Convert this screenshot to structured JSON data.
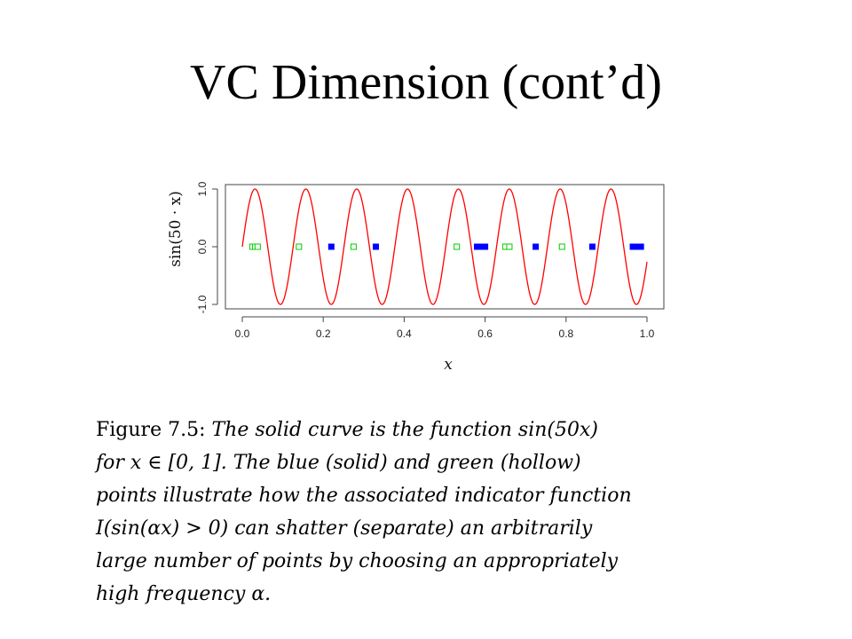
{
  "slide": {
    "title": "VC Dimension (cont’d)"
  },
  "chart_data": {
    "type": "line",
    "xlabel": "x",
    "ylabel": "sin(50 · x)",
    "xlim": [
      0,
      1
    ],
    "ylim": [
      -1,
      1
    ],
    "x_ticks": [
      "0.0",
      "0.2",
      "0.4",
      "0.6",
      "0.8",
      "1.0"
    ],
    "y_ticks": [
      "-1.0",
      "0.0",
      "1.0"
    ],
    "series": [
      {
        "kind": "line",
        "function": "sin(50x)",
        "color": "#ff0000"
      },
      {
        "kind": "points",
        "style": "hollow-square",
        "color": "#00cc00",
        "x": [
          0.025,
          0.032,
          0.038,
          0.14,
          0.275,
          0.53,
          0.65,
          0.66,
          0.79
        ]
      },
      {
        "kind": "points",
        "style": "solid-square",
        "color": "#0000ff",
        "x": [
          0.22,
          0.33,
          0.58,
          0.59,
          0.6,
          0.725,
          0.865,
          0.965,
          0.975,
          0.985
        ]
      }
    ]
  },
  "caption": {
    "lines": [
      {
        "normal": "Figure 7.5:",
        "italic": "The solid curve is the function sin(50x)"
      },
      {
        "italic": "for x ∈ [0, 1].   The blue (solid) and green (hollow)"
      },
      {
        "italic": "points illustrate how the associated indicator function"
      },
      {
        "italic": "I(sin(αx) > 0)  can shatter (separate) an arbitrarily"
      },
      {
        "italic": "large number of points by choosing an appropriately"
      },
      {
        "italic": "high frequency α."
      }
    ]
  }
}
